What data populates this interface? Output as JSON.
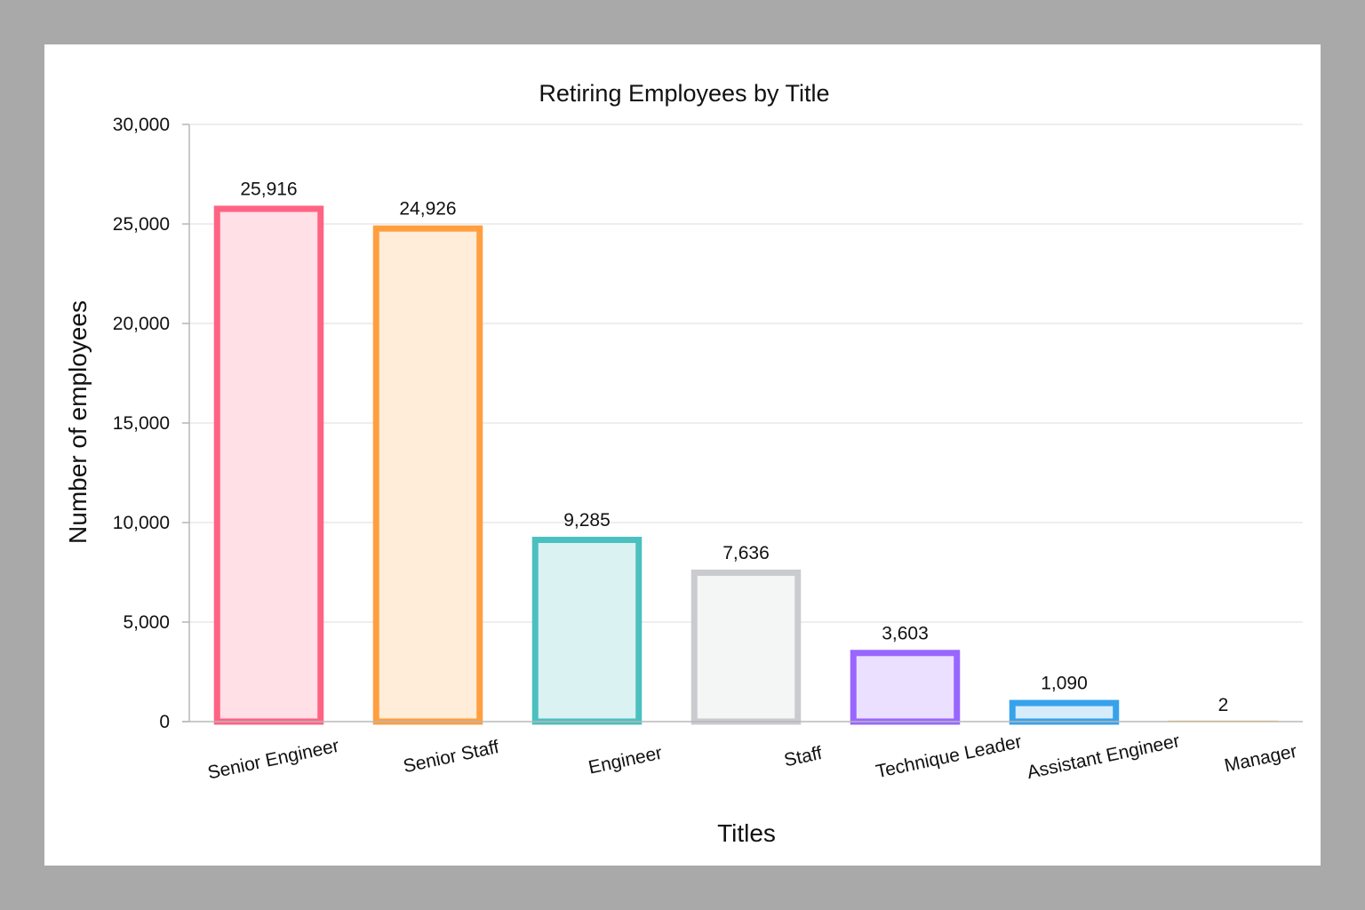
{
  "chart_data": {
    "type": "bar",
    "title": "Retiring Employees by Title",
    "xlabel": "Titles",
    "ylabel": "Number of employees",
    "ylim": [
      0,
      30000
    ],
    "yticks": [
      "0",
      "5,000",
      "10,000",
      "15,000",
      "20,000",
      "25,000",
      "30,000"
    ],
    "ytick_values": [
      0,
      5000,
      10000,
      15000,
      20000,
      25000,
      30000
    ],
    "grid": true,
    "categories": [
      "Senior Engineer",
      "Senior Staff",
      "Engineer",
      "Staff",
      "Technique Leader",
      "Assistant Engineer",
      "Manager"
    ],
    "values": [
      25916,
      24926,
      9285,
      7636,
      3603,
      1090,
      2
    ],
    "value_labels": [
      "25,916",
      "24,926",
      "9,285",
      "7,636",
      "3,603",
      "1,090",
      "2"
    ],
    "colors": {
      "stroke": [
        "#ff6384",
        "#ff9f40",
        "#4bc0c0",
        "#c9cbcf",
        "#9966ff",
        "#36a2eb",
        "#ffcd56"
      ],
      "fill": [
        "#ffe0e6",
        "#ffecd9",
        "#dbf2f2",
        "#f4f5f5",
        "#ebe0ff",
        "#d7ecfb",
        "#fff5dd"
      ]
    }
  }
}
